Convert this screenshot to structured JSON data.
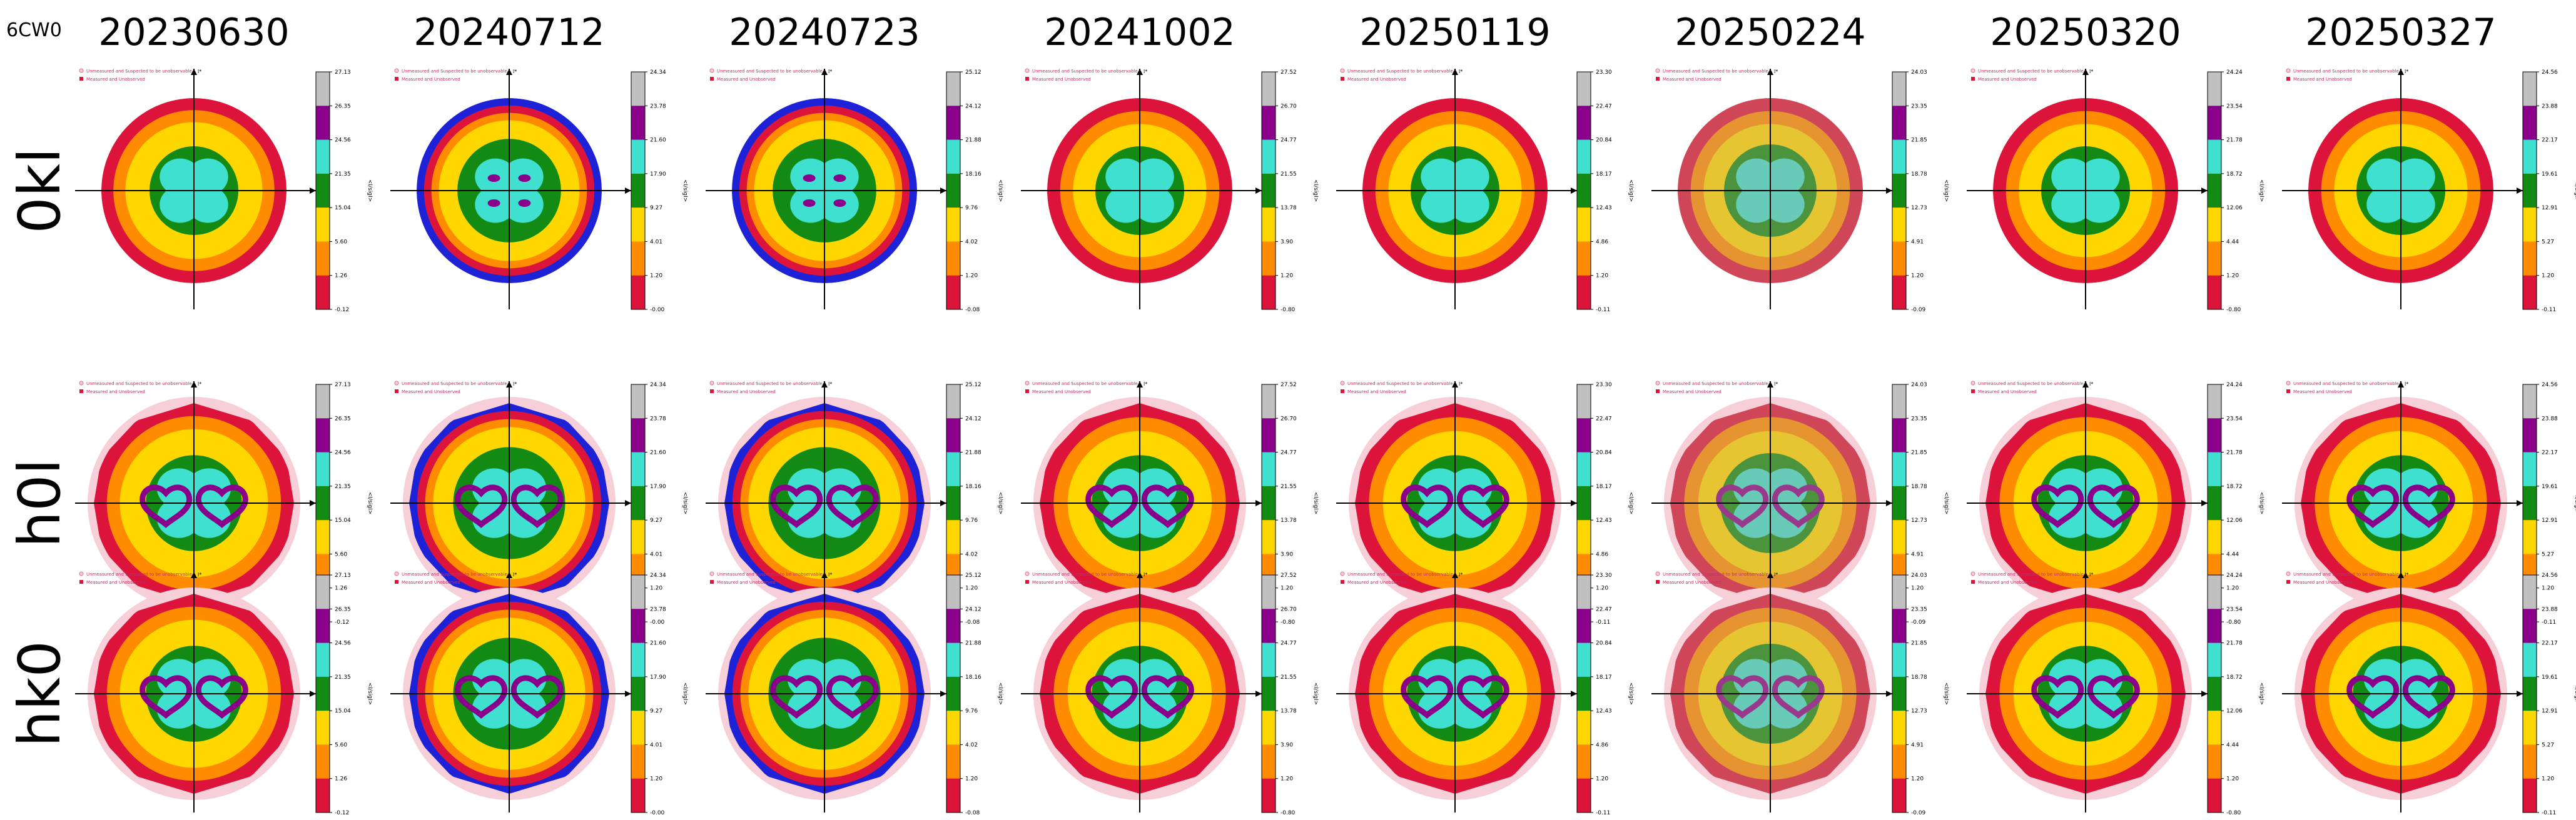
{
  "figure_label": "6CW0",
  "columns": [
    "20230630",
    "20240712",
    "20240723",
    "20241002",
    "20250119",
    "20250224",
    "20250320",
    "20250327"
  ],
  "rows": [
    "0kl",
    "h0l",
    "hk0"
  ],
  "legend": {
    "unmeasured": "Unmeasured and Suspected to be unobservable",
    "measured": "Measured and Unobserved"
  },
  "axis_labels": {
    "up": "l*",
    "right": "k*"
  },
  "colorbar_label": "<I/sigI>",
  "colors": {
    "red": "#dc143c",
    "orange": "#ff8c00",
    "yellow": "#ffd700",
    "green": "#138a13",
    "cyan": "#40e0d0",
    "purple": "#8b008b",
    "gray": "#c0c0c0",
    "blue": "#1e22d6",
    "pink": "#f6cfd8",
    "overlay": "#b5a48c"
  },
  "chart_data": [
    {
      "date": "20230630",
      "type": "heatmap",
      "colorbar_ticks": [
        "27.13",
        "26.35",
        "24.56",
        "21.35",
        "15.04",
        "5.60",
        "1.26",
        "-0.12"
      ],
      "zones": [
        {
          "level": "red",
          "r": 1.0
        },
        {
          "level": "orange",
          "r": 0.87
        },
        {
          "level": "yellow",
          "r": 0.74
        },
        {
          "level": "green",
          "r": 0.48
        },
        {
          "level": "cyan",
          "r": 0.0
        }
      ],
      "blue_ring": false,
      "center_purple": false
    },
    {
      "date": "20240712",
      "type": "heatmap",
      "colorbar_ticks": [
        "24.34",
        "23.78",
        "21.60",
        "17.90",
        "9.27",
        "4.01",
        "1.20",
        "-0.00"
      ],
      "zones": [
        {
          "level": "blue",
          "r": 1.0
        },
        {
          "level": "red",
          "r": 0.92
        },
        {
          "level": "orange",
          "r": 0.84
        },
        {
          "level": "yellow",
          "r": 0.76
        },
        {
          "level": "green",
          "r": 0.56
        },
        {
          "level": "cyan",
          "r": 0.0
        }
      ],
      "blue_ring": true,
      "center_purple": true
    },
    {
      "date": "20240723",
      "type": "heatmap",
      "colorbar_ticks": [
        "25.12",
        "24.12",
        "21.88",
        "18.16",
        "9.76",
        "4.02",
        "1.20",
        "-0.08"
      ],
      "zones": [
        {
          "level": "blue",
          "r": 1.0
        },
        {
          "level": "red",
          "r": 0.92
        },
        {
          "level": "orange",
          "r": 0.84
        },
        {
          "level": "yellow",
          "r": 0.76
        },
        {
          "level": "green",
          "r": 0.56
        },
        {
          "level": "cyan",
          "r": 0.0
        }
      ],
      "blue_ring": true,
      "center_purple": true
    },
    {
      "date": "20241002",
      "type": "heatmap",
      "colorbar_ticks": [
        "27.52",
        "26.70",
        "24.77",
        "21.55",
        "13.78",
        "3.90",
        "1.20",
        "-0.80"
      ],
      "zones": [
        {
          "level": "red",
          "r": 1.0
        },
        {
          "level": "orange",
          "r": 0.86
        },
        {
          "level": "yellow",
          "r": 0.72
        },
        {
          "level": "green",
          "r": 0.48
        },
        {
          "level": "cyan",
          "r": 0.0
        }
      ],
      "blue_ring": false,
      "center_purple": false
    },
    {
      "date": "20250119",
      "type": "heatmap",
      "colorbar_ticks": [
        "23.30",
        "22.47",
        "20.84",
        "18.17",
        "12.43",
        "4.86",
        "1.20",
        "-0.11"
      ],
      "zones": [
        {
          "level": "red",
          "r": 1.0
        },
        {
          "level": "orange",
          "r": 0.86
        },
        {
          "level": "yellow",
          "r": 0.72
        },
        {
          "level": "green",
          "r": 0.48
        },
        {
          "level": "cyan",
          "r": 0.0
        }
      ],
      "blue_ring": false,
      "center_purple": false
    },
    {
      "date": "20250224",
      "type": "heatmap",
      "colorbar_ticks": [
        "24.03",
        "23.35",
        "21.85",
        "18.78",
        "12.73",
        "4.91",
        "1.20",
        "-0.09"
      ],
      "zones": [
        {
          "level": "red",
          "r": 1.0
        },
        {
          "level": "orange",
          "r": 0.86
        },
        {
          "level": "yellow",
          "r": 0.72
        },
        {
          "level": "green",
          "r": 0.5
        },
        {
          "level": "cyan",
          "r": 0.0
        }
      ],
      "blue_ring": false,
      "center_purple": false,
      "overlay": true
    },
    {
      "date": "20250320",
      "type": "heatmap",
      "colorbar_ticks": [
        "24.24",
        "23.54",
        "21.78",
        "18.72",
        "12.06",
        "4.44",
        "1.20",
        "-0.80"
      ],
      "zones": [
        {
          "level": "red",
          "r": 1.0
        },
        {
          "level": "orange",
          "r": 0.86
        },
        {
          "level": "yellow",
          "r": 0.72
        },
        {
          "level": "green",
          "r": 0.48
        },
        {
          "level": "cyan",
          "r": 0.0
        }
      ],
      "blue_ring": false,
      "center_purple": false
    },
    {
      "date": "20250327",
      "type": "heatmap",
      "colorbar_ticks": [
        "24.56",
        "23.88",
        "22.17",
        "19.61",
        "12.91",
        "5.27",
        "1.20",
        "-0.11"
      ],
      "zones": [
        {
          "level": "red",
          "r": 1.0
        },
        {
          "level": "orange",
          "r": 0.86
        },
        {
          "level": "yellow",
          "r": 0.72
        },
        {
          "level": "green",
          "r": 0.48
        },
        {
          "level": "cyan",
          "r": 0.0
        }
      ],
      "blue_ring": false,
      "center_purple": false
    }
  ]
}
